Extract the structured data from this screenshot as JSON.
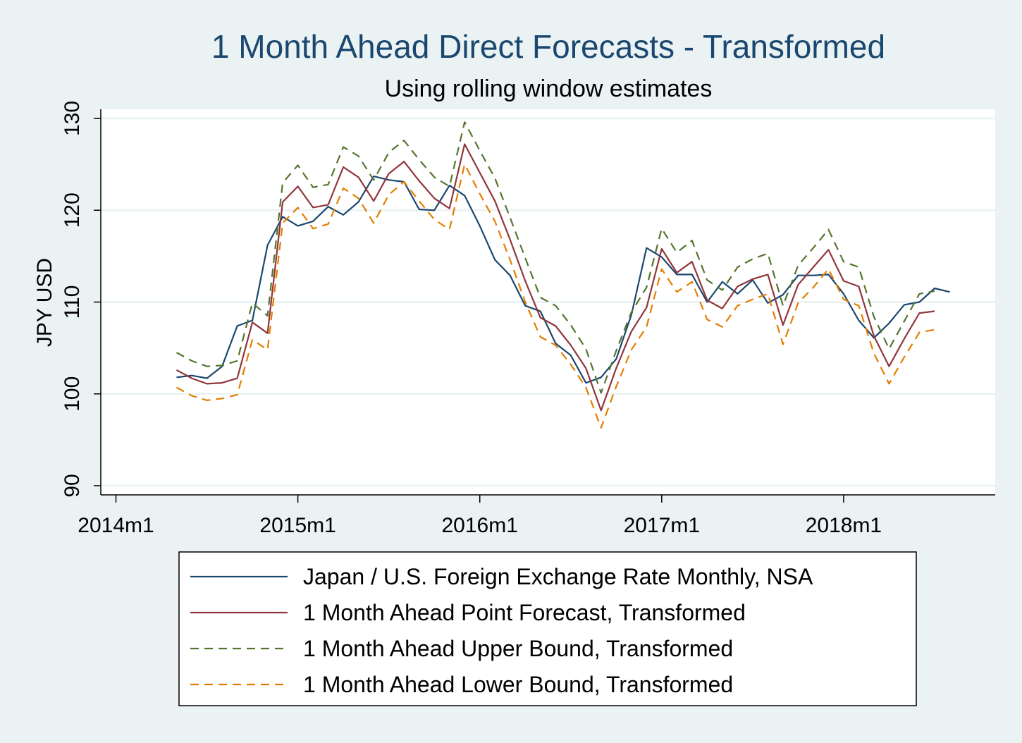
{
  "chart_data": {
    "type": "line",
    "title": "1 Month Ahead Direct Forecasts - Transformed",
    "subtitle": "Using rolling window estimates",
    "ylabel": "JPY USD",
    "xlabel": "",
    "ylim": [
      89,
      131
    ],
    "xlim": [
      "2013m12",
      "2018m11"
    ],
    "yticks": [
      90,
      100,
      110,
      120,
      130
    ],
    "xticks": [
      {
        "month": "2014m1",
        "label": "2014m1"
      },
      {
        "month": "2015m1",
        "label": "2015m1"
      },
      {
        "month": "2016m1",
        "label": "2016m1"
      },
      {
        "month": "2017m1",
        "label": "2017m1"
      },
      {
        "month": "2018m1",
        "label": "2018m1"
      }
    ],
    "grid": true,
    "legend_position": "bottom",
    "series": [
      {
        "name": "Japan / U.S. Foreign Exchange Rate Monthly, NSA",
        "color": "#1a476f",
        "dash": "solid",
        "x": [
          "2014m5",
          "2014m6",
          "2014m7",
          "2014m8",
          "2014m9",
          "2014m10",
          "2014m11",
          "2014m12",
          "2015m1",
          "2015m2",
          "2015m3",
          "2015m4",
          "2015m5",
          "2015m6",
          "2015m7",
          "2015m8",
          "2015m9",
          "2015m10",
          "2015m11",
          "2015m12",
          "2016m1",
          "2016m2",
          "2016m3",
          "2016m4",
          "2016m5",
          "2016m6",
          "2016m7",
          "2016m8",
          "2016m9",
          "2016m10",
          "2016m11",
          "2016m12",
          "2017m1",
          "2017m2",
          "2017m3",
          "2017m4",
          "2017m5",
          "2017m6",
          "2017m7",
          "2017m8",
          "2017m9",
          "2017m10",
          "2017m11",
          "2017m12",
          "2018m1",
          "2018m2",
          "2018m3",
          "2018m4",
          "2018m5",
          "2018m6",
          "2018m7",
          "2018m8"
        ],
        "y": [
          101.8,
          102.0,
          101.7,
          103.0,
          107.4,
          108.0,
          116.2,
          119.3,
          118.3,
          118.8,
          120.4,
          119.5,
          120.9,
          123.7,
          123.3,
          123.1,
          120.1,
          120.0,
          122.7,
          121.6,
          118.3,
          114.6,
          112.9,
          109.6,
          109.0,
          105.5,
          104.2,
          101.2,
          101.8,
          103.8,
          108.6,
          115.9,
          114.9,
          113.0,
          113.0,
          110.0,
          112.2,
          110.9,
          112.4,
          109.9,
          110.8,
          112.9,
          112.9,
          113.0,
          110.9,
          108.0,
          106.1,
          107.7,
          109.7,
          110.0,
          111.5,
          111.1
        ]
      },
      {
        "name": "1 Month Ahead Point Forecast, Transformed",
        "color": "#90353b",
        "dash": "solid",
        "x": [
          "2014m5",
          "2014m6",
          "2014m7",
          "2014m8",
          "2014m9",
          "2014m10",
          "2014m11",
          "2014m12",
          "2015m1",
          "2015m2",
          "2015m3",
          "2015m4",
          "2015m5",
          "2015m6",
          "2015m7",
          "2015m8",
          "2015m9",
          "2015m10",
          "2015m11",
          "2015m12",
          "2016m1",
          "2016m2",
          "2016m3",
          "2016m4",
          "2016m5",
          "2016m6",
          "2016m7",
          "2016m8",
          "2016m9",
          "2016m10",
          "2016m11",
          "2016m12",
          "2017m1",
          "2017m2",
          "2017m3",
          "2017m4",
          "2017m5",
          "2017m6",
          "2017m7",
          "2017m8",
          "2017m9",
          "2017m10",
          "2017m11",
          "2017m12",
          "2018m1",
          "2018m2",
          "2018m3",
          "2018m4",
          "2018m5",
          "2018m6",
          "2018m7"
        ],
        "y": [
          102.6,
          101.7,
          101.1,
          101.2,
          101.7,
          107.8,
          106.6,
          120.9,
          122.6,
          120.3,
          120.6,
          124.7,
          123.6,
          121.0,
          124.0,
          125.3,
          123.2,
          121.3,
          120.2,
          127.2,
          124.1,
          121.0,
          116.8,
          112.3,
          108.3,
          107.4,
          105.3,
          102.8,
          98.2,
          102.8,
          106.8,
          109.4,
          115.8,
          113.2,
          114.4,
          110.2,
          109.3,
          111.7,
          112.5,
          113.0,
          107.5,
          111.9,
          113.8,
          115.7,
          112.3,
          111.7,
          106.3,
          103.0,
          106.0,
          108.8,
          109.0
        ]
      },
      {
        "name": "1 Month Ahead Upper Bound, Transformed",
        "color": "#55752f",
        "dash": "dashed",
        "x": [
          "2014m5",
          "2014m6",
          "2014m7",
          "2014m8",
          "2014m9",
          "2014m10",
          "2014m11",
          "2014m12",
          "2015m1",
          "2015m2",
          "2015m3",
          "2015m4",
          "2015m5",
          "2015m6",
          "2015m7",
          "2015m8",
          "2015m9",
          "2015m10",
          "2015m11",
          "2015m12",
          "2016m1",
          "2016m2",
          "2016m3",
          "2016m4",
          "2016m5",
          "2016m6",
          "2016m7",
          "2016m8",
          "2016m9",
          "2016m10",
          "2016m11",
          "2016m12",
          "2017m1",
          "2017m2",
          "2017m3",
          "2017m4",
          "2017m5",
          "2017m6",
          "2017m7",
          "2017m8",
          "2017m9",
          "2017m10",
          "2017m11",
          "2017m12",
          "2018m1",
          "2018m2",
          "2018m3",
          "2018m4",
          "2018m5",
          "2018m6",
          "2018m7"
        ],
        "y": [
          104.5,
          103.6,
          103.0,
          103.1,
          103.6,
          109.9,
          108.5,
          123.0,
          124.9,
          122.5,
          122.8,
          126.9,
          125.9,
          123.3,
          126.3,
          127.6,
          125.5,
          123.6,
          122.6,
          129.6,
          126.5,
          123.5,
          119.2,
          114.8,
          110.5,
          109.6,
          107.5,
          104.9,
          100.1,
          104.7,
          108.9,
          111.6,
          118.0,
          115.4,
          116.7,
          112.4,
          111.3,
          113.8,
          114.7,
          115.3,
          109.6,
          114.0,
          115.9,
          117.9,
          114.4,
          113.8,
          108.4,
          104.9,
          107.9,
          110.9,
          111.2
        ]
      },
      {
        "name": "1 Month Ahead Lower Bound, Transformed",
        "color": "#e37e00",
        "dash": "dashed",
        "x": [
          "2014m5",
          "2014m6",
          "2014m7",
          "2014m8",
          "2014m9",
          "2014m10",
          "2014m11",
          "2014m12",
          "2015m1",
          "2015m2",
          "2015m3",
          "2015m4",
          "2015m5",
          "2015m6",
          "2015m7",
          "2015m8",
          "2015m9",
          "2015m10",
          "2015m11",
          "2015m12",
          "2016m1",
          "2016m2",
          "2016m3",
          "2016m4",
          "2016m5",
          "2016m6",
          "2016m7",
          "2016m8",
          "2016m9",
          "2016m10",
          "2016m11",
          "2016m12",
          "2017m1",
          "2017m2",
          "2017m3",
          "2017m4",
          "2017m5",
          "2017m6",
          "2017m7",
          "2017m8",
          "2017m9",
          "2017m10",
          "2017m11",
          "2017m12",
          "2018m1",
          "2018m2",
          "2018m3",
          "2018m4",
          "2018m5",
          "2018m6",
          "2018m7"
        ],
        "y": [
          100.7,
          99.8,
          99.3,
          99.5,
          99.9,
          105.9,
          104.8,
          118.6,
          120.3,
          118.0,
          118.5,
          122.4,
          121.3,
          118.6,
          121.7,
          123.1,
          121.0,
          119.0,
          117.9,
          125.0,
          121.8,
          118.8,
          114.6,
          110.0,
          106.2,
          105.3,
          103.2,
          100.7,
          96.3,
          100.8,
          104.8,
          107.3,
          113.6,
          111.1,
          112.2,
          108.1,
          107.3,
          109.6,
          110.3,
          110.9,
          105.4,
          109.9,
          111.6,
          113.6,
          110.3,
          109.6,
          104.4,
          101.1,
          104.0,
          106.7,
          107.0
        ]
      }
    ]
  }
}
